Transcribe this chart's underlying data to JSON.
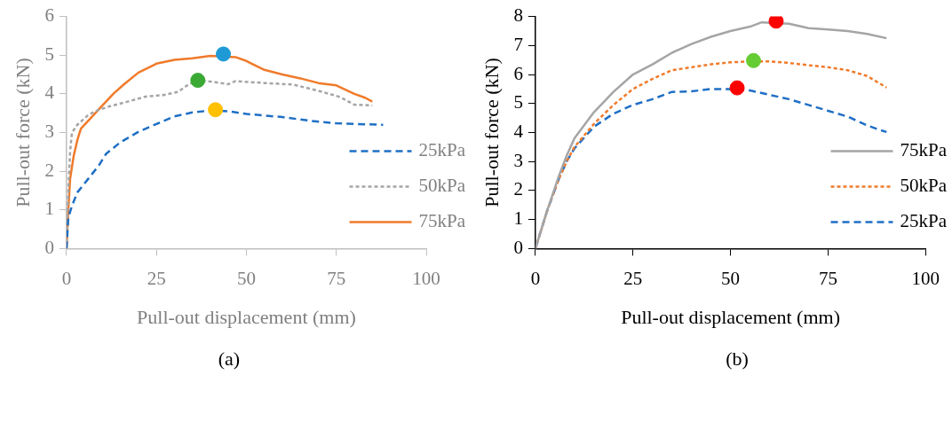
{
  "chart_data": [
    {
      "type": "line",
      "xlabel": "Pull-out displacement (mm)",
      "ylabel": "Pull-out force (kN)",
      "xlim": [
        0,
        100
      ],
      "xticks": [
        0,
        25,
        50,
        75,
        100
      ],
      "ylim": [
        0,
        6
      ],
      "yticks": [
        0,
        1,
        2,
        3,
        4,
        5,
        6
      ],
      "grid": false,
      "legend": "bottom right",
      "annotations": [
        "(a)"
      ],
      "series": [
        {
          "name": "25kPa",
          "color": "#1f6fc5",
          "line_style": "dashed",
          "marker": "none",
          "x": [
            0,
            0.5,
            1.5,
            3,
            6,
            9,
            11,
            15,
            20,
            25,
            30,
            35,
            40,
            45,
            50,
            60,
            68,
            75,
            80,
            88
          ],
          "values": [
            0,
            0.8,
            1.1,
            1.45,
            1.8,
            2.15,
            2.45,
            2.75,
            3.02,
            3.22,
            3.42,
            3.52,
            3.57,
            3.55,
            3.48,
            3.4,
            3.3,
            3.24,
            3.22,
            3.2
          ]
        },
        {
          "name": "50kPa",
          "color": "#a5a5a5",
          "line_style": "dotted",
          "marker": "none",
          "x": [
            0,
            0.5,
            1,
            1.5,
            3,
            6,
            8,
            12,
            17,
            22,
            27,
            31,
            34,
            37,
            40,
            45,
            47,
            55,
            63,
            70,
            76,
            80,
            85
          ],
          "values": [
            0,
            1.5,
            2.5,
            3.0,
            3.2,
            3.45,
            3.55,
            3.68,
            3.8,
            3.93,
            3.97,
            4.05,
            4.25,
            4.35,
            4.32,
            4.25,
            4.33,
            4.28,
            4.24,
            4.08,
            3.92,
            3.72,
            3.7
          ]
        },
        {
          "name": "75kPa",
          "color": "#f07a2a",
          "line_style": "solid",
          "marker": "none",
          "x": [
            0,
            0.5,
            1,
            2,
            3,
            4,
            6,
            8,
            10,
            13,
            16,
            20,
            25,
            30,
            35,
            40,
            47,
            50,
            55,
            60,
            65,
            70,
            75,
            80,
            83,
            85
          ],
          "values": [
            0,
            1,
            1.8,
            2.4,
            2.8,
            3.1,
            3.3,
            3.5,
            3.7,
            4.0,
            4.25,
            4.55,
            4.78,
            4.88,
            4.92,
            4.98,
            4.95,
            4.85,
            4.62,
            4.5,
            4.4,
            4.28,
            4.22,
            4.0,
            3.9,
            3.8
          ]
        },
        {
          "type": "scatter",
          "color": "#1f9ad6",
          "marker": "circle",
          "x": [
            43.6
          ],
          "values": [
            5.03
          ]
        },
        {
          "type": "scatter",
          "color": "#3aaa35",
          "marker": "circle",
          "x": [
            36.5
          ],
          "values": [
            4.35
          ]
        },
        {
          "type": "scatter",
          "color": "#ffc000",
          "marker": "circle",
          "x": [
            41.4
          ],
          "values": [
            3.59
          ]
        }
      ]
    },
    {
      "type": "line",
      "xlabel": "Pull-out displacement (mm)",
      "ylabel": "Pull-out force (kN)",
      "xlim": [
        0,
        100
      ],
      "xticks": [
        0,
        25,
        50,
        75,
        100
      ],
      "ylim": [
        0,
        8
      ],
      "yticks": [
        0,
        1,
        2,
        3,
        4,
        5,
        6,
        7,
        8
      ],
      "grid": false,
      "legend": "bottom right",
      "annotations": [
        "(b)"
      ],
      "series": [
        {
          "name": "75kPa",
          "color": "#a5a5a5",
          "line_style": "solid",
          "marker": "none",
          "x": [
            0,
            3,
            6,
            8,
            10,
            15,
            20,
            25,
            30,
            35,
            40,
            45,
            50,
            55,
            58,
            65,
            70,
            75,
            80,
            85,
            90
          ],
          "values": [
            0,
            1.3,
            2.5,
            3.2,
            3.8,
            4.7,
            5.4,
            6.0,
            6.35,
            6.75,
            7.05,
            7.3,
            7.5,
            7.65,
            7.8,
            7.75,
            7.6,
            7.55,
            7.5,
            7.4,
            7.25
          ]
        },
        {
          "name": "50kPa",
          "color": "#f07a2a",
          "line_style": "dotted",
          "marker": "none",
          "x": [
            0,
            3,
            6,
            8,
            10,
            15,
            20,
            25,
            30,
            35,
            40,
            45,
            50,
            55,
            60,
            65,
            70,
            75,
            80,
            85,
            90
          ],
          "values": [
            0,
            1.3,
            2.4,
            3.0,
            3.5,
            4.3,
            4.95,
            5.5,
            5.85,
            6.15,
            6.25,
            6.35,
            6.42,
            6.45,
            6.45,
            6.4,
            6.32,
            6.25,
            6.15,
            5.95,
            5.55
          ]
        },
        {
          "name": "25kPa",
          "color": "#1f6fc5",
          "line_style": "dashed",
          "marker": "none",
          "x": [
            0,
            3,
            6,
            8,
            10,
            15,
            20,
            25,
            30,
            35,
            40,
            45,
            50,
            55,
            60,
            65,
            70,
            75,
            80,
            85,
            88,
            90
          ],
          "values": [
            0,
            1.3,
            2.4,
            3.0,
            3.45,
            4.2,
            4.65,
            4.95,
            5.15,
            5.4,
            5.42,
            5.5,
            5.5,
            5.45,
            5.3,
            5.15,
            4.95,
            4.75,
            4.55,
            4.25,
            4.1,
            4.02
          ]
        },
        {
          "type": "scatter",
          "color": "#ff0000",
          "marker": "circle",
          "x": [
            61.7
          ],
          "values": [
            7.84
          ]
        },
        {
          "type": "scatter",
          "color": "#66cc33",
          "marker": "circle",
          "x": [
            55.9
          ],
          "values": [
            6.48
          ]
        },
        {
          "type": "scatter",
          "color": "#ff0000",
          "marker": "circle",
          "x": [
            51.7
          ],
          "values": [
            5.54
          ]
        }
      ]
    }
  ]
}
